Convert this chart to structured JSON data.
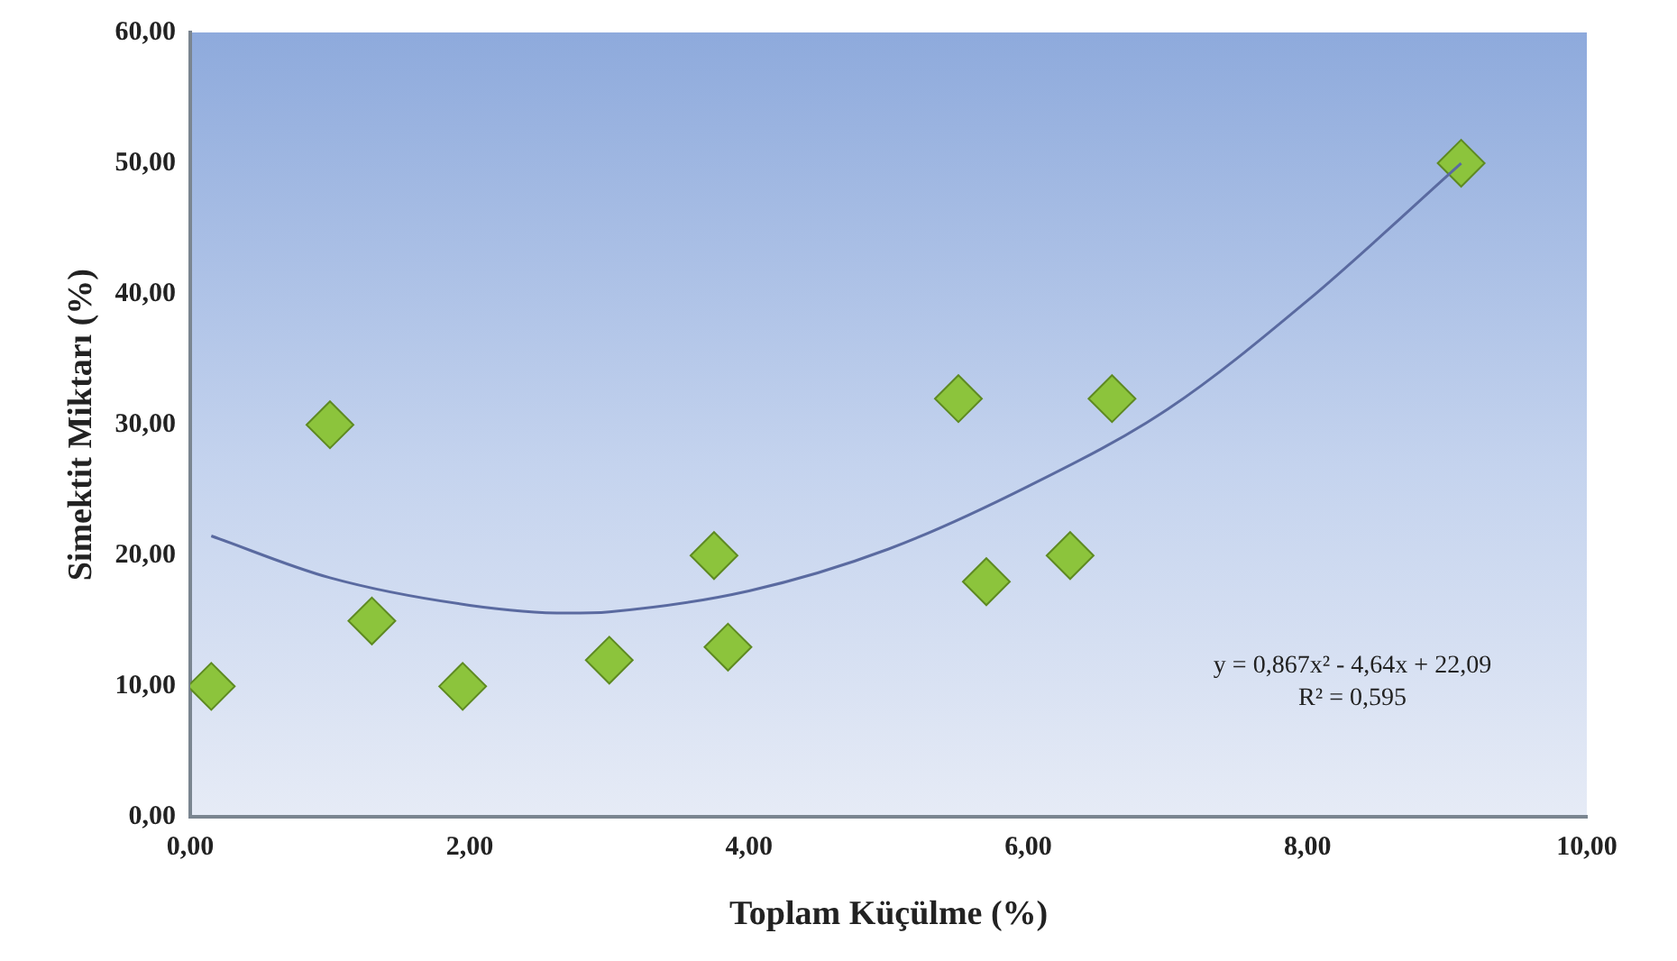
{
  "chart_data": {
    "type": "scatter",
    "xlabel": "Toplam Küçülme (%)",
    "ylabel": "Simektit Miktarı (%)",
    "marker": "diamond",
    "grid": false,
    "legend": false,
    "xlim": [
      0,
      10
    ],
    "xticks": [
      {
        "value": 0,
        "label": "0,00"
      },
      {
        "value": 2,
        "label": "2,00"
      },
      {
        "value": 4,
        "label": "4,00"
      },
      {
        "value": 6,
        "label": "6,00"
      },
      {
        "value": 8,
        "label": "8,00"
      },
      {
        "value": 10,
        "label": "10,00"
      }
    ],
    "ylim": [
      0,
      60
    ],
    "yticks": [
      {
        "value": 0,
        "label": "0,00"
      },
      {
        "value": 10,
        "label": "10,00"
      },
      {
        "value": 20,
        "label": "20,00"
      },
      {
        "value": 30,
        "label": "30,00"
      },
      {
        "value": 40,
        "label": "40,00"
      },
      {
        "value": 50,
        "label": "50,00"
      },
      {
        "value": 60,
        "label": "60,00"
      }
    ],
    "series": [
      {
        "type": "scatter",
        "color": "#8cc43c",
        "x": [
          0.15,
          1.0,
          1.3,
          1.95,
          3.0,
          3.75,
          3.85,
          5.5,
          5.7,
          6.3,
          6.6,
          9.1
        ],
        "values": [
          10,
          30,
          15,
          10,
          12,
          20,
          13,
          32,
          18,
          20,
          32,
          50
        ]
      },
      {
        "type": "line",
        "color": "#5a6aa0",
        "marker": "none",
        "x": [
          0.15,
          1,
          2,
          2.7,
          3,
          4,
          5,
          6,
          7,
          8,
          9.1
        ],
        "values": [
          21.5,
          18.3,
          16.2,
          15.6,
          15.7,
          17.3,
          20.5,
          25.3,
          31.2,
          39.5,
          50
        ]
      }
    ],
    "annotations": [
      "y = 0,867x² - 4,64x + 22,09",
      "R² = 0,595"
    ]
  }
}
